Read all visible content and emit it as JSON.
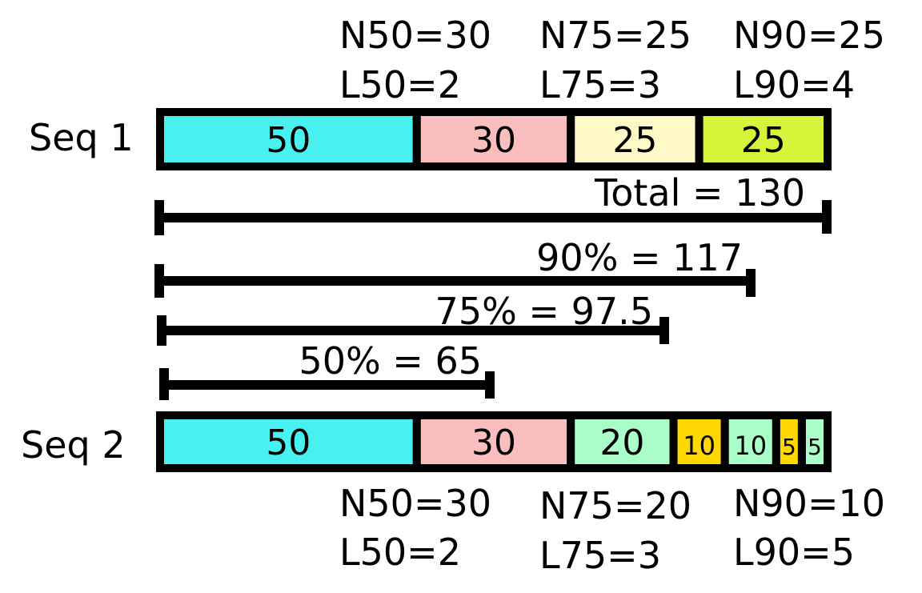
{
  "seq1": {
    "label": "Seq 1",
    "segments": [
      {
        "value": 50,
        "label": "50",
        "color": "#48F0F0"
      },
      {
        "value": 30,
        "label": "30",
        "color": "#F9BEBD"
      },
      {
        "value": 25,
        "label": "25",
        "color": "#FFF9C8"
      },
      {
        "value": 25,
        "label": "25",
        "color": "#D6F43A"
      }
    ],
    "stats": {
      "n50": "N50=30",
      "l50": "L50=2",
      "n75": "N75=25",
      "l75": "L75=3",
      "n90": "N90=25",
      "l90": "L90=4"
    }
  },
  "seq2": {
    "label": "Seq 2",
    "segments": [
      {
        "value": 50,
        "label": "50",
        "color": "#48F0F0"
      },
      {
        "value": 30,
        "label": "30",
        "color": "#F9BEBD"
      },
      {
        "value": 20,
        "label": "20",
        "color": "#AAFFC8"
      },
      {
        "value": 10,
        "label": "10",
        "color": "#FFD700"
      },
      {
        "value": 10,
        "label": "10",
        "color": "#AAFFC8"
      },
      {
        "value": 5,
        "label": "5",
        "color": "#FFD700"
      },
      {
        "value": 5,
        "label": "5",
        "color": "#AAFFC8"
      }
    ],
    "stats": {
      "n50": "N50=30",
      "l50": "L50=2",
      "n75": "N75=20",
      "l75": "L75=3",
      "n90": "N90=10",
      "l90": "L90=5"
    }
  },
  "thresholds": [
    {
      "label": "Total = 130",
      "value": 130
    },
    {
      "label": "90% = 117",
      "value": 117
    },
    {
      "label": "75% = 97.5",
      "value": 97.5
    },
    {
      "label": "50% = 65",
      "value": 65
    }
  ]
}
